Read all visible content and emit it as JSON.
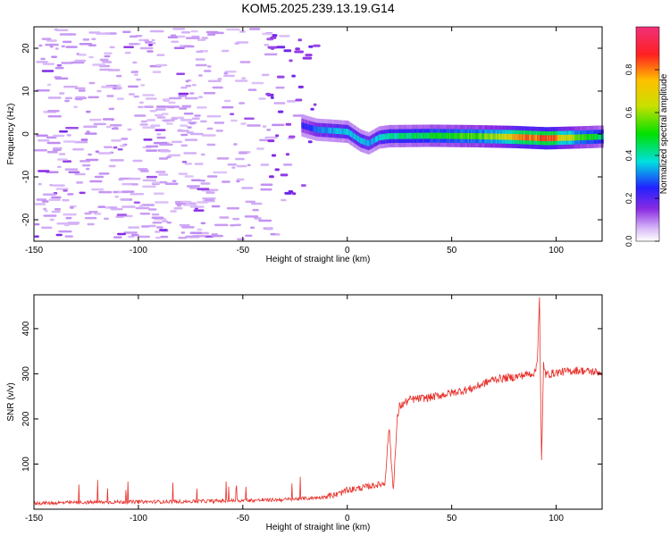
{
  "figure": {
    "title": "KOM5.2025.239.13.19.G14"
  },
  "chart_data": [
    {
      "type": "heatmap",
      "xlabel": "Height of straight line (km)",
      "ylabel": "Frequency (Hz)",
      "xlim": [
        -150,
        122
      ],
      "ylim": [
        -25,
        25
      ],
      "x_ticks": [
        -150,
        -100,
        -50,
        0,
        50,
        100
      ],
      "y_ticks": [
        -20,
        -10,
        0,
        10,
        20
      ],
      "colorbar": {
        "label": "Normalized spectral amplitude",
        "range": [
          0,
          1
        ],
        "ticks": [
          "0.0",
          "0.2",
          "0.4",
          "0.6",
          "0.8"
        ]
      },
      "ridge": {
        "description_points": [
          [
            -22,
            2.0
          ],
          [
            -15,
            1.0
          ],
          [
            -8,
            0.8
          ],
          [
            0,
            0.5
          ],
          [
            6,
            -1.5
          ],
          [
            10,
            -2.2
          ],
          [
            15,
            -0.8
          ],
          [
            20,
            -0.5
          ],
          [
            40,
            -0.4
          ],
          [
            60,
            -0.5
          ],
          [
            80,
            -0.7
          ],
          [
            95,
            -1.0
          ],
          [
            110,
            -0.8
          ],
          [
            122,
            -0.6
          ]
        ],
        "amplitude": [
          [
            -22,
            0.25
          ],
          [
            -10,
            0.35
          ],
          [
            0,
            0.4
          ],
          [
            10,
            0.35
          ],
          [
            20,
            0.45
          ],
          [
            35,
            0.5
          ],
          [
            50,
            0.55
          ],
          [
            65,
            0.6
          ],
          [
            80,
            0.8
          ],
          [
            95,
            0.95
          ],
          [
            105,
            0.7
          ],
          [
            122,
            0.45
          ]
        ]
      }
    },
    {
      "type": "line",
      "xlabel": "Height of straight line (km)",
      "ylabel": "SNR (v/v)",
      "xlim": [
        -150,
        122
      ],
      "ylim": [
        0,
        475
      ],
      "x_ticks": [
        -150,
        -100,
        -50,
        0,
        50,
        100
      ],
      "y_ticks": [
        100,
        200,
        300,
        400
      ],
      "color": "#e8302a",
      "x": [
        -150,
        -125,
        -100,
        -75,
        -50,
        -30,
        -15,
        -5,
        0,
        10,
        18,
        20,
        22,
        24,
        25,
        30,
        40,
        50,
        60,
        70,
        80,
        90,
        91,
        92,
        93,
        94,
        95,
        100,
        110,
        122
      ],
      "y": [
        12,
        14,
        15,
        16,
        18,
        20,
        24,
        30,
        40,
        48,
        55,
        180,
        40,
        200,
        225,
        240,
        245,
        255,
        265,
        285,
        290,
        300,
        330,
        470,
        100,
        320,
        295,
        300,
        305,
        300
      ]
    }
  ]
}
